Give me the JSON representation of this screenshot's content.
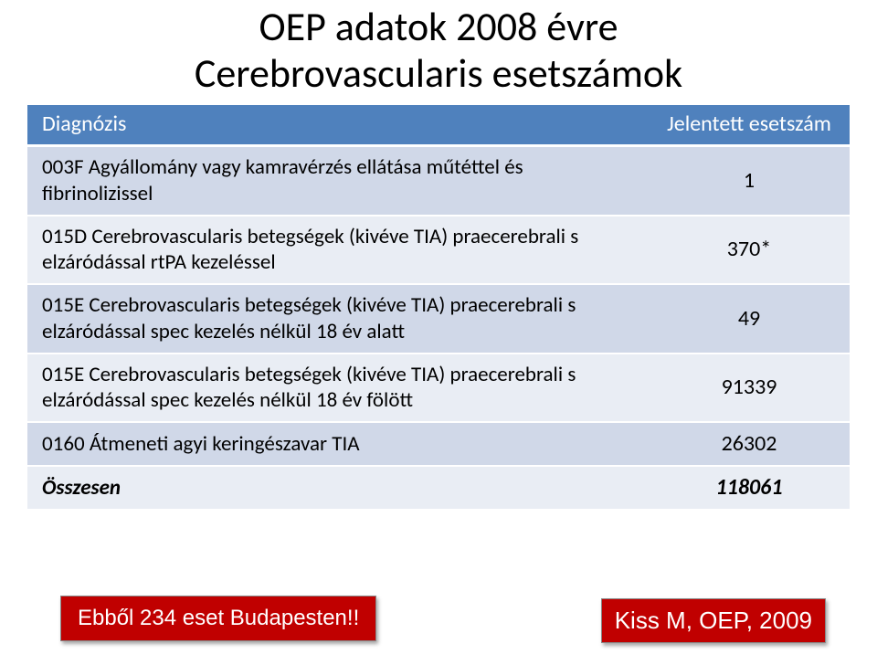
{
  "title": {
    "line1": "OEP adatok 2008 évre",
    "line2": "Cerebrovascularis esetszámok"
  },
  "table": {
    "header_bg": "#4f81bd",
    "row_bg": "#d0d8e8",
    "row_alt_bg": "#e9edf4",
    "columns": [
      "Diagnózis",
      "Jelentett esetszám"
    ],
    "rows": [
      {
        "label": "003F Agyállomány vagy kamravérzés ellátása műtéttel és fibrinolizissel",
        "value": "1"
      },
      {
        "label": "015D Cerebrovascularis betegségek (kivéve TIA) praecerebrali s elzáródással rtPA kezeléssel",
        "value": "370*"
      },
      {
        "label": "015E Cerebrovascularis betegségek (kivéve TIA) praecerebrali s elzáródással spec kezelés nélkül  18 év alatt",
        "value": "49"
      },
      {
        "label": "015E Cerebrovascularis betegségek (kivéve TIA) praecerebrali s elzáródással spec kezelés nélkül  18 év fölött",
        "value": "91339"
      },
      {
        "label": "0160 Átmeneti agyi keringészavar TIA",
        "value": "26302"
      }
    ],
    "total": {
      "label": "Összesen",
      "value": "118061"
    }
  },
  "footnote": "Ebből 234 eset Budapesten!!",
  "citation": "Kiss M, OEP, 2009",
  "colors": {
    "red": "#c00000",
    "blue": "#4f81bd",
    "light1": "#d0d8e8",
    "light2": "#e9edf4",
    "white": "#ffffff",
    "black": "#000000"
  }
}
